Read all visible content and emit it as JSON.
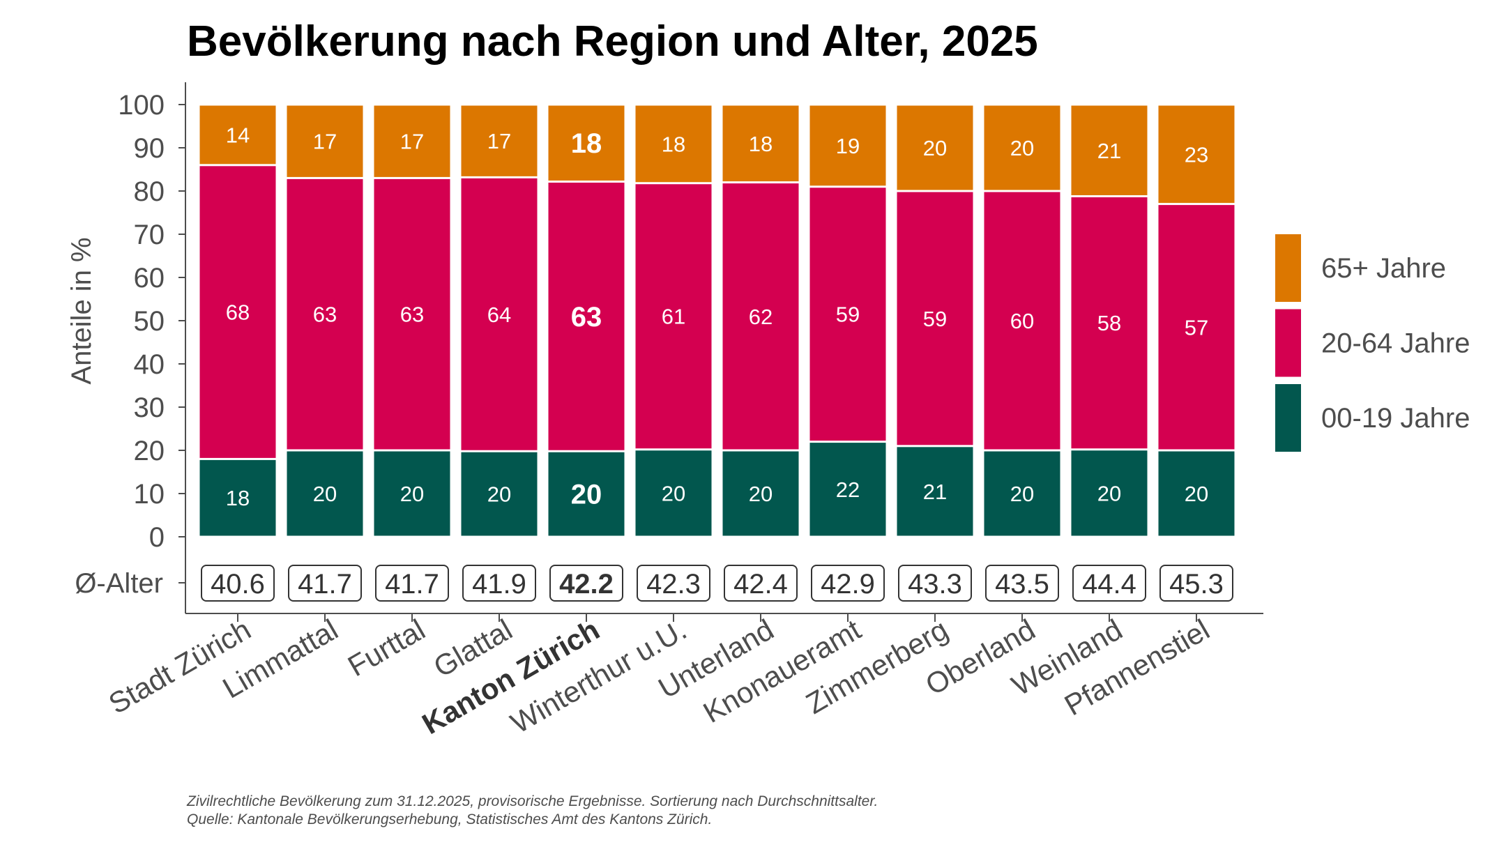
{
  "chart_data": {
    "type": "bar",
    "stacked": true,
    "title": "Bevölkerung nach Region und Alter, 2025",
    "ylabel": "Anteile in %",
    "ylim": [
      0,
      100
    ],
    "yticks": [
      0,
      10,
      20,
      30,
      40,
      50,
      60,
      70,
      80,
      90,
      100
    ],
    "grid": false,
    "legend_placement": "right",
    "categories": [
      "Stadt Zürich",
      "Limmattal",
      "Furttal",
      "Glattal",
      "Kanton Zürich",
      "Winterthur u.U.",
      "Unterland",
      "Knonaueramt",
      "Zimmerberg",
      "Oberland",
      "Weinland",
      "Pfannenstiel"
    ],
    "highlight_category": "Kanton Zürich",
    "series": [
      {
        "name": "00-19 Jahre",
        "color": "#02574E",
        "values": [
          18,
          20,
          20,
          20,
          20,
          20,
          20,
          22,
          21,
          20,
          20,
          20
        ]
      },
      {
        "name": "20-64 Jahre",
        "color": "#D40050",
        "values": [
          68,
          63,
          63,
          64,
          63,
          61,
          62,
          59,
          59,
          60,
          58,
          57
        ]
      },
      {
        "name": "65+ Jahre",
        "color": "#DC7700",
        "values": [
          14,
          17,
          17,
          17,
          18,
          18,
          18,
          19,
          20,
          20,
          21,
          23
        ]
      }
    ],
    "avg_age_label": "Ø-Alter",
    "avg_age": [
      "40.6",
      "41.7",
      "41.7",
      "41.9",
      "42.2",
      "42.3",
      "42.4",
      "42.9",
      "43.3",
      "43.5",
      "44.4",
      "45.3"
    ],
    "notes": [
      "Zivilrechtliche Bevölkerung zum 31.12.2025, provisorische Ergebnisse. Sortierung nach Durchschnittsalter.",
      "Quelle: Kantonale Bevölkerungserhebung, Statistisches Amt des Kantons Zürich."
    ]
  }
}
